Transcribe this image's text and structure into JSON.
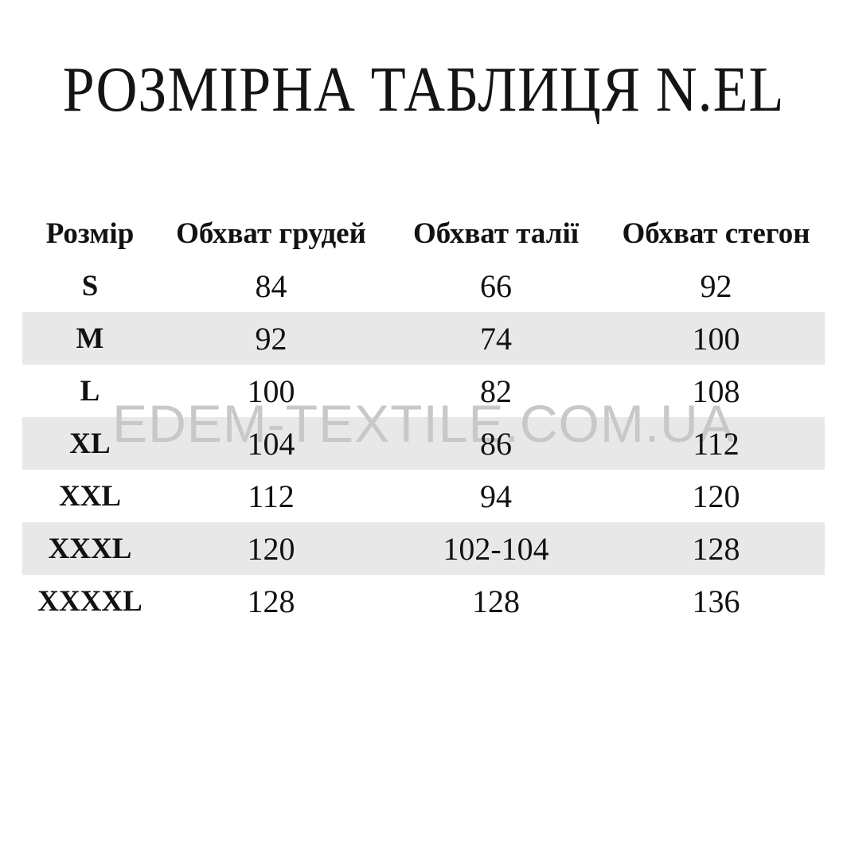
{
  "title": "РОЗМІРНА ТАБЛИЦЯ N.EL",
  "watermark": {
    "text": "EDEM-TEXTILE.COM.UA"
  },
  "table": {
    "columns": [
      "Розмір",
      "Обхват грудей",
      "Обхват талії",
      "Обхват стегон"
    ],
    "rows": [
      {
        "size": "S",
        "chest": "84",
        "waist": "66",
        "hips": "92"
      },
      {
        "size": "M",
        "chest": "92",
        "waist": "74",
        "hips": "100"
      },
      {
        "size": "L",
        "chest": "100",
        "waist": "82",
        "hips": "108"
      },
      {
        "size": "XL",
        "chest": "104",
        "waist": "86",
        "hips": "112"
      },
      {
        "size": "XXL",
        "chest": "112",
        "waist": "94",
        "hips": "120"
      },
      {
        "size": "XXXL",
        "chest": "120",
        "waist": "102-104",
        "hips": "128"
      },
      {
        "size": "XXXXL",
        "chest": "128",
        "waist": "128",
        "hips": "136"
      }
    ]
  },
  "colors": {
    "stripe": "#e8e8e8",
    "watermark": "#c8c8c8",
    "text": "#121212",
    "background": "#ffffff"
  },
  "chart_data": {
    "type": "table",
    "title": "РОЗМІРНА ТАБЛИЦЯ N.EL",
    "columns": [
      "Розмір",
      "Обхват грудей",
      "Обхват талії",
      "Обхват стегон"
    ],
    "rows": [
      [
        "S",
        84,
        66,
        92
      ],
      [
        "M",
        92,
        74,
        100
      ],
      [
        "L",
        100,
        82,
        108
      ],
      [
        "XL",
        104,
        86,
        112
      ],
      [
        "XXL",
        112,
        94,
        120
      ],
      [
        "XXXL",
        120,
        "102-104",
        128
      ],
      [
        "XXXXL",
        128,
        128,
        136
      ]
    ],
    "notes": "Striped rows (light gray): M, XL, XXXL. Watermark text EDEM-TEXTILE.COM.UA overlays rows L/XL.",
    "layout_hints": {
      "grid": false,
      "borders": false,
      "zebra_striping": true
    }
  }
}
